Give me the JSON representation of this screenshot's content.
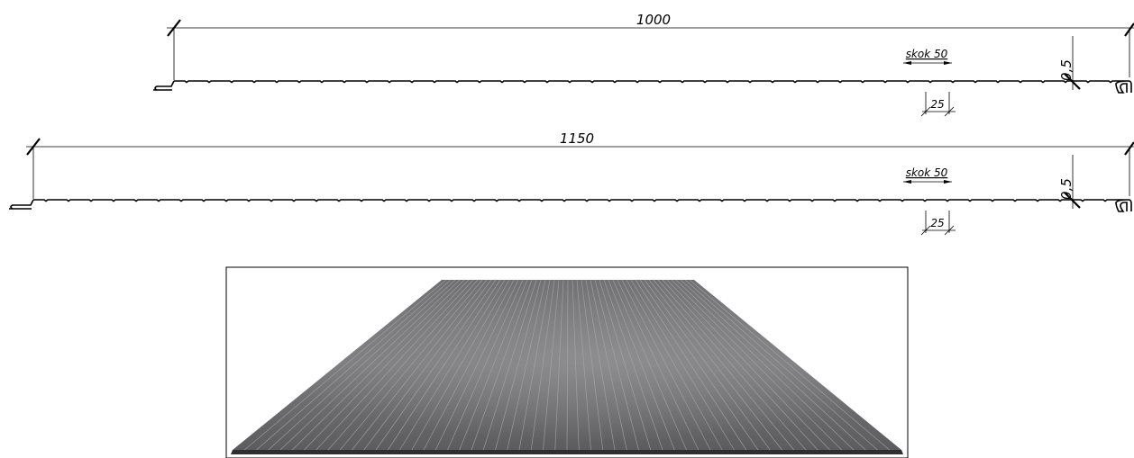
{
  "profiles": [
    {
      "width_label": "1000",
      "pitch_label": "skok 50",
      "thickness_label": "0,5",
      "rib_label": "25"
    },
    {
      "width_label": "1150",
      "pitch_label": "skok 50",
      "thickness_label": "0,5",
      "rib_label": "25"
    }
  ]
}
